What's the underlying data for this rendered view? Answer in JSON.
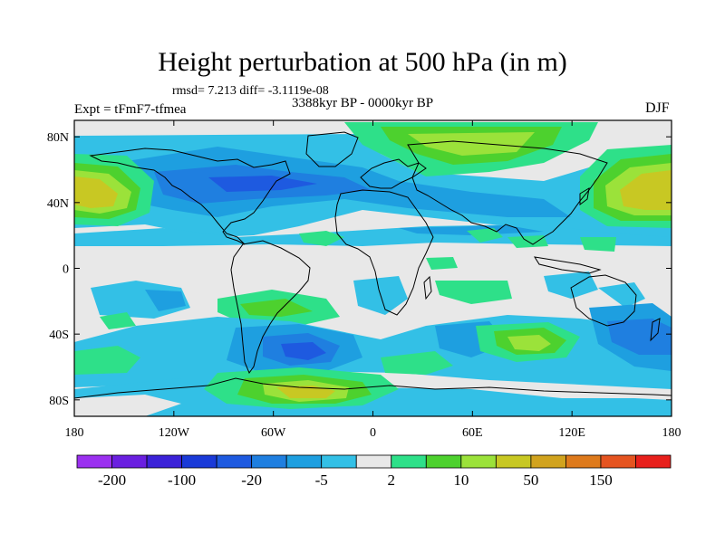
{
  "title": "Height perturbation at 500 hPa (in m)",
  "stats": "rmsd= 7.213 diff= -3.1119e-08",
  "time_range": "3388kyr BP - 0000kyr BP",
  "experiment": "Expt = tFmF7-tfmea",
  "season": "DJF",
  "chart_data": {
    "type": "map",
    "projection": "cylindrical-equidistant",
    "lon_range": [
      -180,
      180
    ],
    "lat_range": [
      -90,
      90
    ],
    "lat_ticks": [
      "80N",
      "40N",
      "0",
      "40S",
      "80S"
    ],
    "lon_ticks": [
      "180",
      "120W",
      "60W",
      "0",
      "60E",
      "120E",
      "180"
    ],
    "colorbar": {
      "colors": [
        "#9b30f0",
        "#6a1fe0",
        "#3b22d8",
        "#1a3ad8",
        "#1e5ae0",
        "#1f7fe0",
        "#1e9fe0",
        "#33c0e6",
        "#e8e8e8",
        "#2ee089",
        "#4dd12e",
        "#9be23a",
        "#c8c823",
        "#d1a31e",
        "#de7a1c",
        "#e55420",
        "#e8201c"
      ],
      "labels": [
        "-200",
        "-100",
        "-20",
        "-5",
        "2",
        "10",
        "50",
        "150"
      ]
    }
  }
}
